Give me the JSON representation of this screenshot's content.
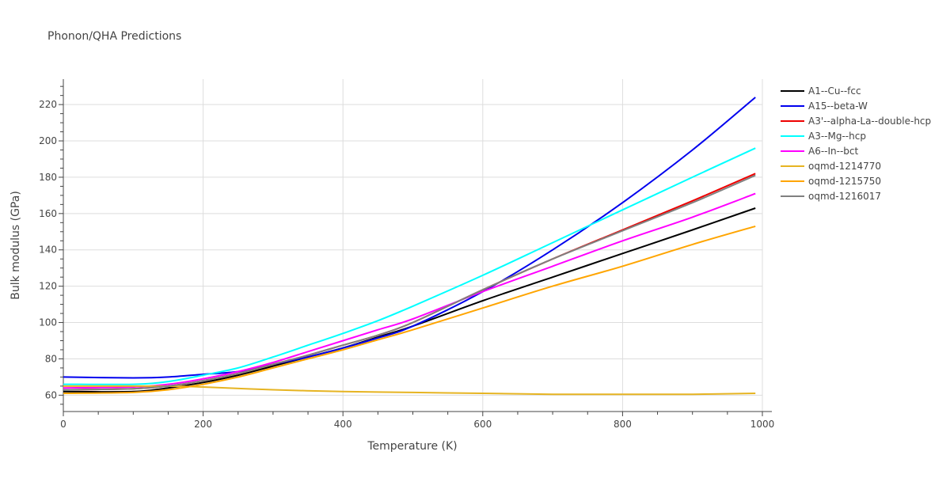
{
  "chart_data": {
    "type": "line",
    "title": "Phonon/QHA Predictions",
    "xlabel": "Temperature (K)",
    "ylabel": "Bulk modulus (GPa)",
    "xlim": [
      0,
      1000
    ],
    "ylim": [
      51,
      234
    ],
    "xticks": [
      0,
      200,
      400,
      600,
      800,
      1000
    ],
    "yticks": [
      60,
      80,
      100,
      120,
      140,
      160,
      180,
      200,
      220
    ],
    "grid": true,
    "legend_position": "top-right",
    "series": [
      {
        "name": "A1--Cu--fcc",
        "color": "#000000",
        "x": [
          0,
          100,
          150,
          200,
          250,
          300,
          350,
          400,
          450,
          500,
          600,
          700,
          800,
          900,
          990
        ],
        "y": [
          62,
          62,
          64,
          67,
          71,
          76,
          81,
          86,
          92,
          98,
          112,
          125,
          138,
          151,
          163
        ]
      },
      {
        "name": "A15--beta-W",
        "color": "#0000ee",
        "x": [
          0,
          100,
          150,
          200,
          250,
          300,
          350,
          400,
          450,
          500,
          600,
          700,
          800,
          900,
          990
        ],
        "y": [
          70,
          69.5,
          70,
          71.5,
          73,
          77,
          81,
          86,
          91.5,
          98,
          117,
          140,
          166,
          195,
          224
        ]
      },
      {
        "name": "A3'--alpha-La--double-hcp",
        "color": "#ee0000",
        "x": [
          0,
          100,
          150,
          200,
          250,
          300,
          350,
          400,
          450,
          500,
          600,
          700,
          800,
          900,
          990
        ],
        "y": [
          63,
          63.5,
          65,
          68,
          72,
          77,
          82,
          87.5,
          93,
          100,
          118,
          135,
          151,
          167,
          182
        ]
      },
      {
        "name": "A3--Mg--hcp",
        "color": "#00ffff",
        "x": [
          0,
          100,
          150,
          200,
          250,
          300,
          350,
          400,
          450,
          500,
          600,
          700,
          800,
          900,
          990
        ],
        "y": [
          66,
          66,
          67.5,
          71,
          75,
          81,
          87.5,
          94,
          101,
          109,
          126,
          144,
          162,
          180,
          196
        ]
      },
      {
        "name": "A6--In--bct",
        "color": "#ff00ff",
        "x": [
          0,
          100,
          150,
          200,
          250,
          300,
          350,
          400,
          450,
          500,
          600,
          700,
          800,
          900,
          990
        ],
        "y": [
          64,
          64.5,
          66,
          69,
          73,
          78,
          84,
          90,
          96,
          102,
          117,
          131,
          145,
          158,
          171
        ]
      },
      {
        "name": "oqmd-1214770",
        "color": "#e6b422",
        "x": [
          0,
          100,
          150,
          200,
          300,
          400,
          500,
          600,
          700,
          800,
          900,
          990
        ],
        "y": [
          65,
          65,
          65,
          64.5,
          63,
          62,
          61.5,
          61,
          60.5,
          60.5,
          60.5,
          61
        ]
      },
      {
        "name": "oqmd-1215750",
        "color": "#ffa500",
        "x": [
          0,
          100,
          150,
          200,
          250,
          300,
          350,
          400,
          450,
          500,
          600,
          700,
          800,
          900,
          990
        ],
        "y": [
          61,
          61.5,
          63,
          66,
          70,
          75,
          80,
          85,
          90.5,
          96,
          108,
          120,
          131,
          143,
          153
        ]
      },
      {
        "name": "oqmd-1216017",
        "color": "#808080",
        "x": [
          0,
          100,
          150,
          200,
          250,
          300,
          350,
          400,
          450,
          500,
          600,
          700,
          800,
          900,
          990
        ],
        "y": [
          63,
          63.5,
          65,
          68,
          72,
          77,
          82,
          87.5,
          93,
          100,
          118,
          135,
          150.5,
          166,
          181
        ]
      }
    ]
  }
}
